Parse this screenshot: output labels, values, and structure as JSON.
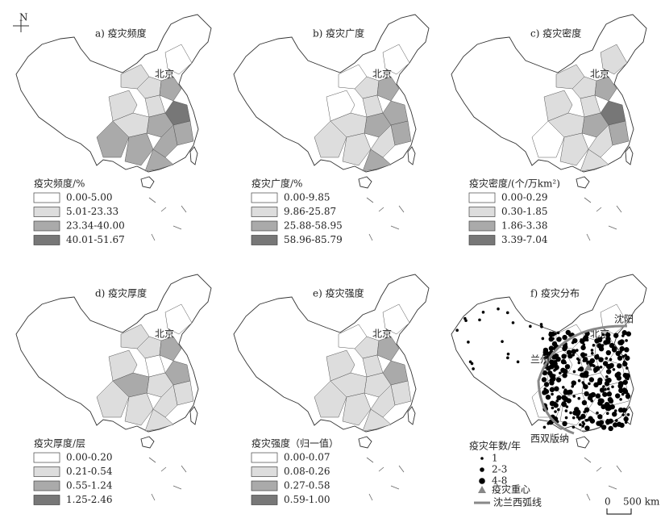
{
  "panels": [
    {
      "title": "a) 疫灾频度",
      "legend_title": "疫灾频度/%",
      "legend": [
        "0.00-5.00",
        "5.01-23.33",
        "23.34-40.00",
        "40.01-51.67"
      ]
    },
    {
      "title": "b) 疫灾广度",
      "legend_title": "疫灾广度/%",
      "legend": [
        "0.00-9.85",
        "9.86-25.87",
        "25.88-58.95",
        "58.96-85.79"
      ]
    },
    {
      "title": "c) 疫灾密度",
      "legend_title": "疫灾密度/(个/万km²)",
      "legend": [
        "0.00-0.29",
        "0.30-1.85",
        "1.86-3.38",
        "3.39-7.04"
      ]
    },
    {
      "title": "d) 疫灾厚度",
      "legend_title": "疫灾厚度/层",
      "legend": [
        "0.00-0.20",
        "0.21-0.54",
        "0.55-1.24",
        "1.25-2.46"
      ]
    },
    {
      "title": "e) 疫灾强度",
      "legend_title": "疫灾强度（归一值）",
      "legend": [
        "0.00-0.07",
        "0.08-0.26",
        "0.27-0.58",
        "0.59-1.00"
      ]
    }
  ],
  "panel_f": {
    "title": "f) 疫灾分布",
    "legend_title": "疫灾年数/年",
    "legend": [
      "1",
      "2-3",
      "4-8"
    ],
    "centroid": "疫灾重心",
    "arc": "沈兰西弧线"
  },
  "places": {
    "beijing": "北京",
    "shenyang": "沈阳",
    "lanzhou": "兰州",
    "xishuangbanna": "西双版纳"
  },
  "scale": {
    "zero": "0",
    "distance": "500 km"
  },
  "compass": "N"
}
